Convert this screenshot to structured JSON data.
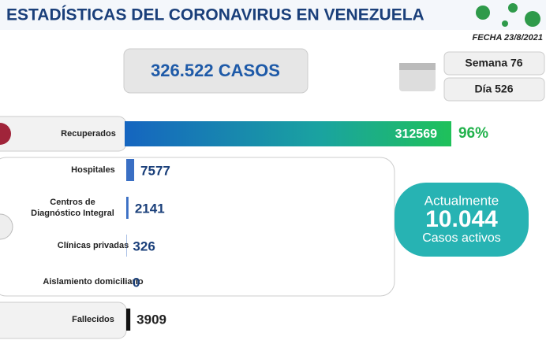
{
  "header": {
    "title": "ESTADÍSTICAS DEL CORONAVIRUS EN VENEZUELA",
    "date": "FECHA 23/8/2021"
  },
  "summary": {
    "total": "326.522 CASOS",
    "week": "Semana 76",
    "day": "Día 526"
  },
  "recovered": {
    "label": "Recuperados",
    "value": 312569,
    "percent": "96%"
  },
  "rows": [
    {
      "label": "Hospitales",
      "value": 7577
    },
    {
      "label": "Centros de Diagnóstico Integral",
      "value": 2141
    },
    {
      "label": "Clínicas privadas",
      "value": 326
    },
    {
      "label": "Aislamiento domiciliario",
      "value": 0
    }
  ],
  "deaths": {
    "label": "Fallecidos",
    "value": 3909
  },
  "active": {
    "line1": "Actualmente",
    "value": "10.044",
    "line2": "Casos activos"
  }
}
